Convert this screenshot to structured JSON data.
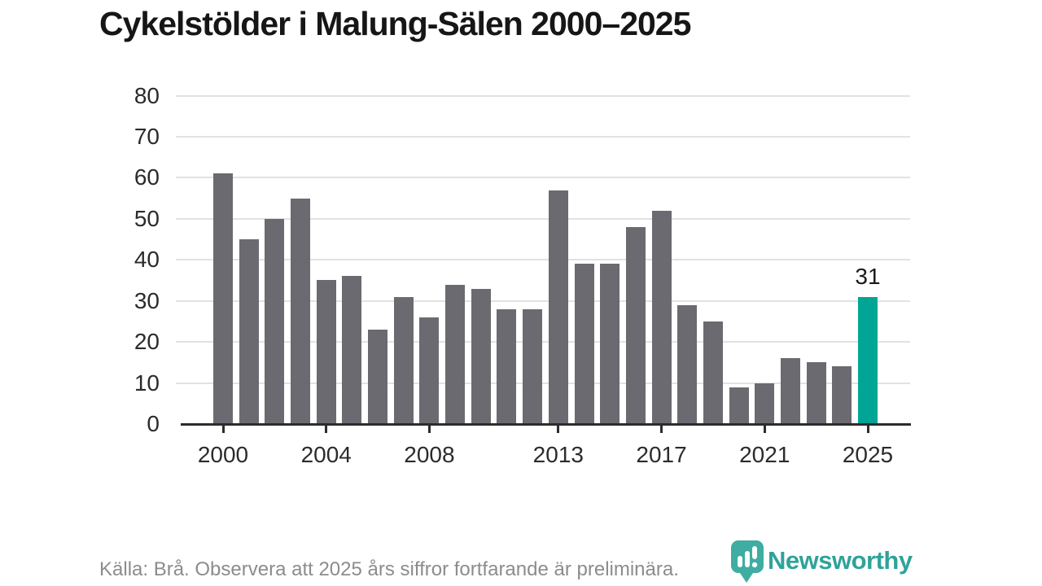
{
  "title": "Cykelstölder i Malung-Sälen 2000–2025",
  "chart_data": {
    "type": "bar",
    "x": [
      2000,
      2001,
      2002,
      2003,
      2004,
      2005,
      2006,
      2007,
      2008,
      2009,
      2010,
      2011,
      2012,
      2013,
      2014,
      2015,
      2016,
      2017,
      2018,
      2019,
      2020,
      2021,
      2022,
      2023,
      2024,
      2025
    ],
    "values": [
      61,
      45,
      50,
      55,
      35,
      36,
      23,
      31,
      26,
      34,
      33,
      28,
      28,
      57,
      39,
      39,
      48,
      52,
      29,
      25,
      9,
      10,
      16,
      15,
      14,
      31
    ],
    "title": "Cykelstölder i Malung-Sälen 2000–2025",
    "xlabel": "",
    "ylabel": "",
    "ylim": [
      0,
      80
    ],
    "yticks": [
      0,
      10,
      20,
      30,
      40,
      50,
      60,
      70,
      80
    ],
    "xticks": [
      2000,
      2004,
      2008,
      2013,
      2017,
      2021,
      2025
    ],
    "grid": "horizontal",
    "bar_color": "#6b6a70",
    "highlight_x": 2025,
    "highlight_color": "#00a596",
    "highlight_value_label": "31"
  },
  "footer": {
    "source_text": "Källa: Brå. Observera att 2025 års siffror fortfarande är preliminära."
  },
  "logo": {
    "text": "Newsworthy",
    "wordmark_color": "#2fa39a",
    "pin_color": "#3fada1"
  }
}
